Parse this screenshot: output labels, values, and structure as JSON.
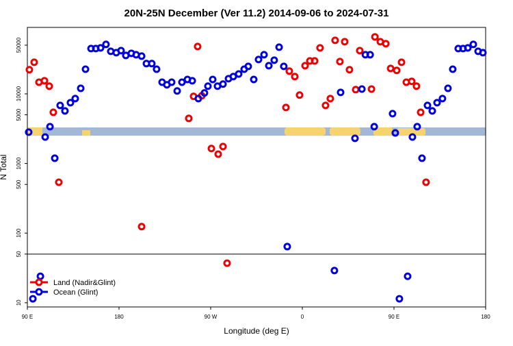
{
  "chart_data": {
    "type": "scatter",
    "title": "20N-25N December (Ver 11.2)   2014-09-06 to 2024-07-31",
    "x_label": "Longitude (deg E)",
    "y_label": "N Total",
    "xlim": [
      90,
      540
    ],
    "xticks": [
      {
        "value": 90,
        "label": "90 E"
      },
      180,
      {
        "value": 270,
        "label": "90 W"
      },
      {
        "value": 360,
        "label": "0"
      },
      {
        "value": 450,
        "label": "90 E"
      },
      {
        "value": 540,
        "label": "180"
      }
    ],
    "ylim": [
      8.7,
      90000
    ],
    "y_scale": "log",
    "yticks": [
      10,
      50,
      100,
      500,
      1000,
      5000,
      10000,
      50000
    ],
    "separator_y": 50,
    "legend": "bottom-left",
    "series": [
      {
        "name": "Land (Nadir&Glint)",
        "color": "#ee0000",
        "x": [
          92.0,
          96.7,
          101.4,
          106.8,
          111.5,
          115.5,
          120.9,
          202.2,
          248.5,
          253.2,
          257.2,
          261.3,
          270.7,
          277.4,
          282.1,
          286.1,
          343.9,
          347.2,
          352.6,
          357.3,
          362.7,
          367.4,
          372.1,
          377.4,
          382.8,
          387.5,
          392.2,
          396.9,
          401.6,
          406.3,
          412.4,
          416.4,
          427.9,
          431.3,
          436.6,
          442.0,
          446.7,
          452.7,
          457.4,
          462.1,
          467.4,
          472.1,
          476.2,
          481.5
        ],
        "values": [
          22200,
          28400,
          14700,
          15400,
          12900,
          5430,
          538,
          124,
          4440,
          9200,
          47900,
          9400,
          1640,
          1360,
          1750,
          37,
          6370,
          21200,
          17700,
          9600,
          25400,
          29700,
          29700,
          45700,
          6820,
          8550,
          58700,
          29100,
          56100,
          22200,
          11500,
          41800,
          11700,
          65800,
          56100,
          52500,
          23200,
          21700,
          28400,
          14700,
          15100,
          12900,
          5430,
          538
        ]
      },
      {
        "name": "Ocean (Glint)",
        "color": "#0000dd",
        "x": [
          91.3,
          95.4,
          102.8,
          107.5,
          112.2,
          116.9,
          122.2,
          126.9,
          132.3,
          137.0,
          142.4,
          147.1,
          152.5,
          157.2,
          161.9,
          167.2,
          171.9,
          177.3,
          182.0,
          186.7,
          192.1,
          196.8,
          202.2,
          206.9,
          212.2,
          216.9,
          222.3,
          227.0,
          231.7,
          237.1,
          241.8,
          247.2,
          251.9,
          257.9,
          263.9,
          267.3,
          272.0,
          276.7,
          282.1,
          287.5,
          292.2,
          297.5,
          302.9,
          306.9,
          312.3,
          317.0,
          322.4,
          327.1,
          332.4,
          337.2,
          341.8,
          345.2,
          391.5,
          397.6,
          411.7,
          418.5,
          421.9,
          426.6,
          430.6,
          448.6,
          451.3,
          455.3,
          463.4,
          468.1,
          472.8,
          477.5,
          482.9,
          487.6,
          492.3,
          497.6,
          503.0,
          507.7,
          513.1,
          517.8,
          522.5,
          527.9,
          532.6,
          537.3
        ],
        "values": [
          2820,
          11.4,
          24,
          2400,
          3380,
          1190,
          6820,
          5690,
          7460,
          8550,
          12000,
          22600,
          44700,
          44700,
          45700,
          51300,
          40800,
          39000,
          41800,
          35600,
          38200,
          36500,
          34800,
          27200,
          27200,
          22600,
          14700,
          13500,
          14700,
          11000,
          14700,
          16100,
          15400,
          8550,
          10300,
          12900,
          16100,
          12900,
          13800,
          16500,
          17700,
          19300,
          22600,
          24800,
          16100,
          31100,
          36500,
          25400,
          30400,
          46800,
          24800,
          64,
          29,
          10500,
          2300,
          11700,
          36500,
          36500,
          3380,
          5200,
          2750,
          11.4,
          24,
          2400,
          3380,
          1190,
          6820,
          5690,
          7460,
          8550,
          12000,
          22600,
          44700,
          44700,
          45700,
          51300,
          40800,
          39000
        ]
      }
    ]
  }
}
